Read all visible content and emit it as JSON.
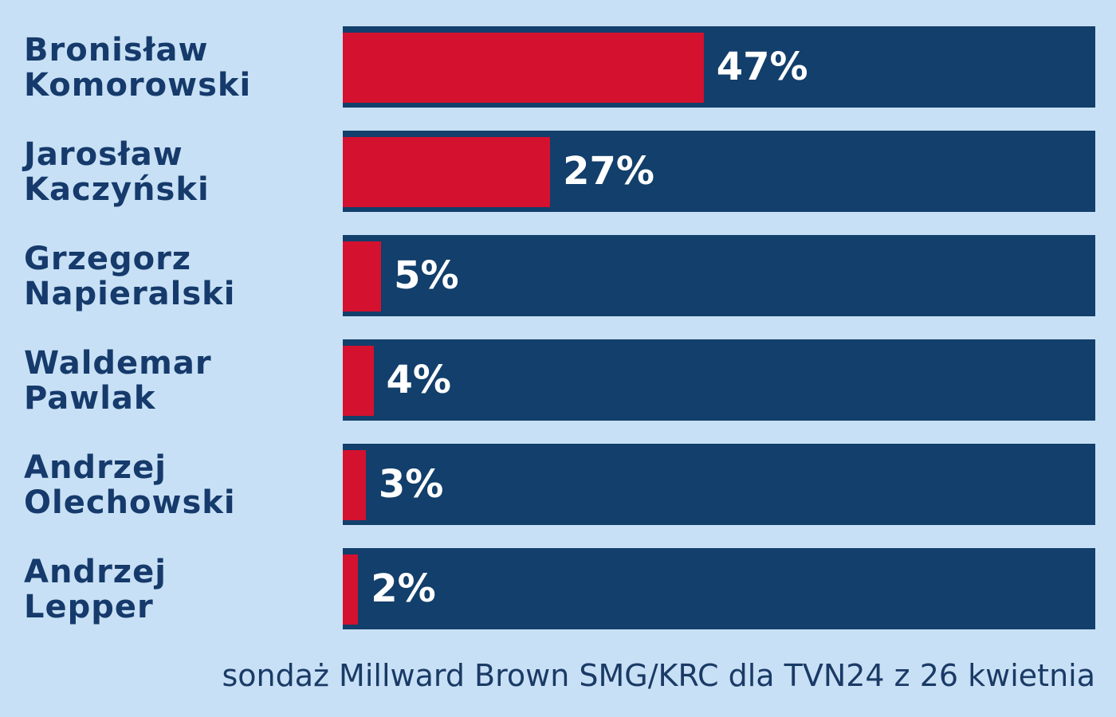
{
  "chart_data": {
    "type": "bar",
    "orientation": "horizontal",
    "categories": [
      "Bronisław Komorowski",
      "Jarosław Kaczyński",
      "Grzegorz Napieralski",
      "Waldemar Pawlak",
      "Andrzej Olechowski",
      "Andrzej Lepper"
    ],
    "values": [
      47,
      27,
      5,
      4,
      3,
      2
    ],
    "value_labels": [
      "47%",
      "27%",
      "5%",
      "4%",
      "3%",
      "2%"
    ],
    "color": "#d4112f",
    "track_color": "#123f6b",
    "xlim": [
      0,
      98
    ],
    "source": "sondaż Millward Brown SMG/KRC dla TVN24 z 26 kwietnia"
  }
}
